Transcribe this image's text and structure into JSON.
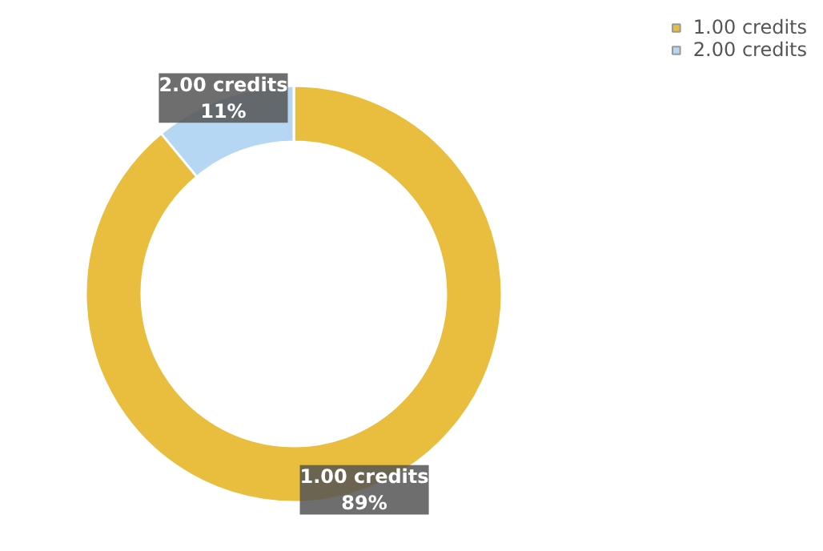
{
  "chart_data": {
    "type": "donut",
    "categories": [
      "1.00 credits",
      "2.00 credits"
    ],
    "values": [
      89,
      11
    ],
    "colors": [
      "#e9bd3d",
      "#b5d7f3"
    ],
    "value_labels": [
      "89%",
      "11%"
    ],
    "data_labels": true,
    "legend": "top right"
  }
}
